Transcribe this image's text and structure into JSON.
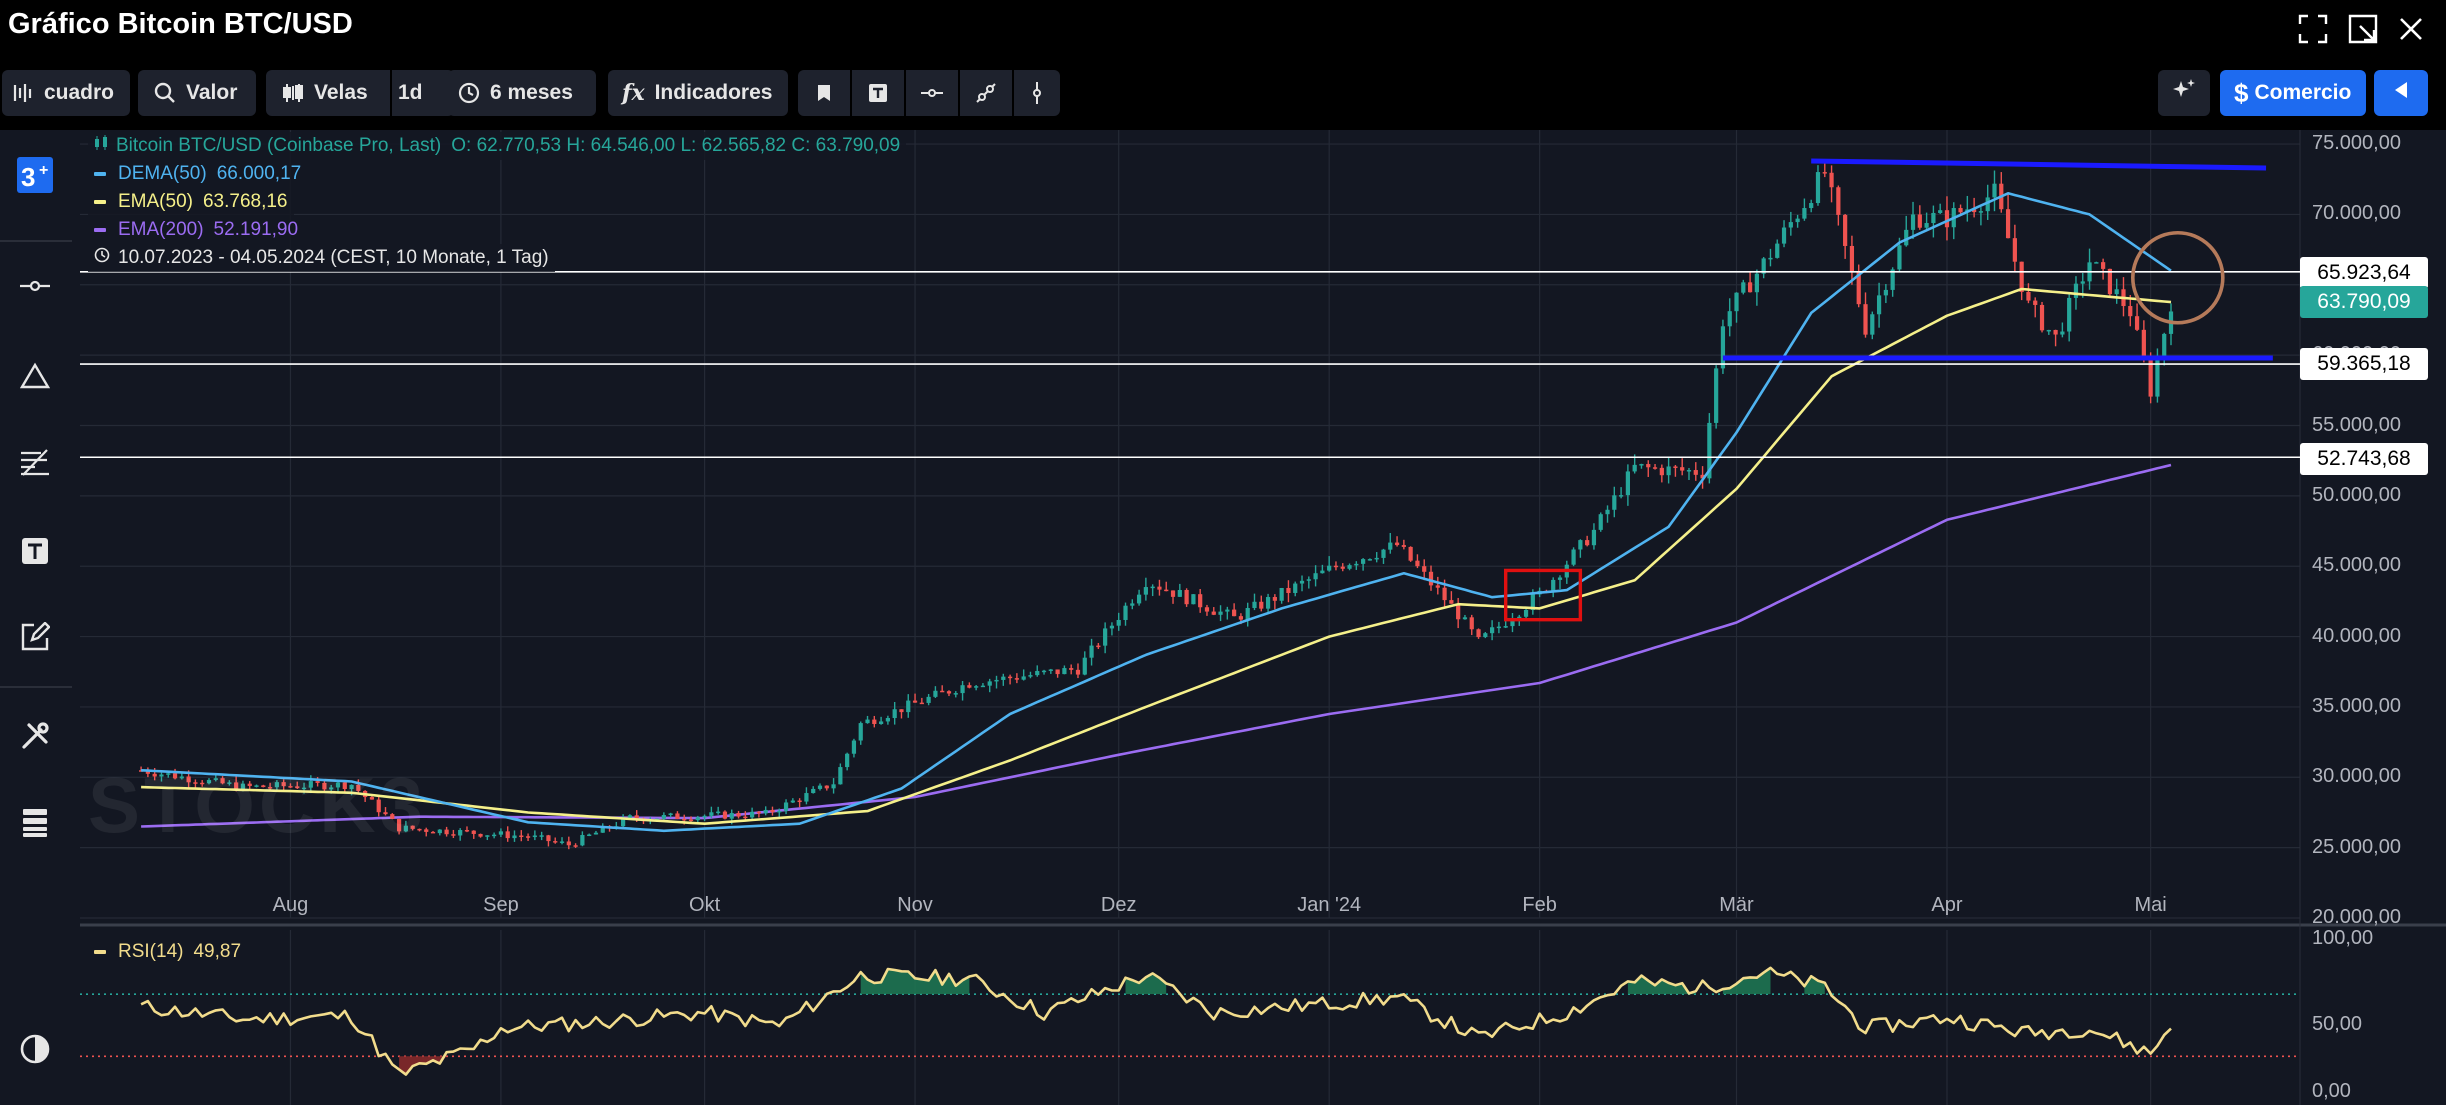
{
  "window": {
    "title": "Gráfico Bitcoin BTC/USD"
  },
  "toolbar": {
    "chart_type_label": "cuadro",
    "search_label": "Valor",
    "candles_label": "Velas",
    "interval_label": "1d",
    "range_label": "6 meses",
    "indicators_label": "Indicadores",
    "trade_label": "Comercio"
  },
  "legend": {
    "instrument": "Bitcoin BTC/USD (Coinbase Pro, Last)",
    "ohlc": "O: 62.770,53   H: 64.546,00   L: 62.565,82   C: 63.790,09",
    "dema_label": "DEMA(50)",
    "dema_value": "66.000,17",
    "ema50_label": "EMA(50)",
    "ema50_value": "63.768,16",
    "ema200_label": "EMA(200)",
    "ema200_value": "52.191,90",
    "period": "10.07.2023 - 04.05.2024   (CEST, 10 Monate, 1 Tag)",
    "rsi_label": "RSI(14)",
    "rsi_value": "49,87"
  },
  "watermark": "STOCK3",
  "price_labels": {
    "line1": "65.923,64",
    "current": "63.790,09",
    "line2": "59.365,18",
    "line3": "52.743,68"
  },
  "y_ticks": [
    "75.000,00",
    "70.000,00",
    "65.000,00",
    "60.000,00",
    "55.000,00",
    "50.000,00",
    "45.000,00",
    "40.000,00",
    "35.000,00",
    "30.000,00",
    "25.000,00",
    "20.000,00"
  ],
  "rsi_ticks": [
    "100,00",
    "50,00",
    "0,00"
  ],
  "x_ticks": [
    "Aug",
    "Sep",
    "Okt",
    "Nov",
    "Dez",
    "Jan '24",
    "Feb",
    "Mär",
    "Apr",
    "Mai"
  ],
  "colors": {
    "up": "#26a69a",
    "down": "#ef5350",
    "dema": "#4fb3f0",
    "ema50": "#f5f08a",
    "ema200": "#9b6cf2",
    "rsi": "#f2dc8c",
    "accent": "#1e6bf0",
    "drawing_blue": "#1a1aff",
    "drawing_red": "#e01010",
    "drawing_brown": "#b57a5a"
  },
  "chart_data": {
    "type": "candlestick",
    "instrument": "Bitcoin BTC/USD",
    "ylim": [
      20000,
      76000
    ],
    "rsi_ylim": [
      0,
      100
    ],
    "rsi_levels": [
      70,
      30
    ],
    "horizontal_lines": [
      65923.64,
      59365.18,
      52743.68
    ],
    "support_resistance": {
      "top": 73500,
      "bottom": 59800
    },
    "key_price": [
      {
        "date": "2023-07-10",
        "price": 30500
      },
      {
        "date": "2023-07-25",
        "price": 29300
      },
      {
        "date": "2023-08-10",
        "price": 29500
      },
      {
        "date": "2023-08-17",
        "price": 26400
      },
      {
        "date": "2023-09-05",
        "price": 25800
      },
      {
        "date": "2023-09-11",
        "price": 25200
      },
      {
        "date": "2023-09-20",
        "price": 27100
      },
      {
        "date": "2023-10-10",
        "price": 27400
      },
      {
        "date": "2023-10-20",
        "price": 29600
      },
      {
        "date": "2023-10-24",
        "price": 33800
      },
      {
        "date": "2023-11-09",
        "price": 36700
      },
      {
        "date": "2023-11-25",
        "price": 37700
      },
      {
        "date": "2023-12-05",
        "price": 44000
      },
      {
        "date": "2023-12-18",
        "price": 41300
      },
      {
        "date": "2024-01-02",
        "price": 45000
      },
      {
        "date": "2024-01-11",
        "price": 46500
      },
      {
        "date": "2024-01-20",
        "price": 41600
      },
      {
        "date": "2024-01-23",
        "price": 39600
      },
      {
        "date": "2024-02-01",
        "price": 43000
      },
      {
        "date": "2024-02-09",
        "price": 47500
      },
      {
        "date": "2024-02-15",
        "price": 52000
      },
      {
        "date": "2024-02-25",
        "price": 51700
      },
      {
        "date": "2024-02-28",
        "price": 62500
      },
      {
        "date": "2024-03-05",
        "price": 66500
      },
      {
        "date": "2024-03-14",
        "price": 73000
      },
      {
        "date": "2024-03-20",
        "price": 62000
      },
      {
        "date": "2024-03-27",
        "price": 69800
      },
      {
        "date": "2024-04-01",
        "price": 69700
      },
      {
        "date": "2024-04-08",
        "price": 71500
      },
      {
        "date": "2024-04-13",
        "price": 63500
      },
      {
        "date": "2024-04-17",
        "price": 61200
      },
      {
        "date": "2024-04-22",
        "price": 66700
      },
      {
        "date": "2024-04-28",
        "price": 63100
      },
      {
        "date": "2024-05-01",
        "price": 57500
      },
      {
        "date": "2024-05-04",
        "price": 63790
      }
    ],
    "dema50": [
      {
        "date": "2023-07-10",
        "price": 30500
      },
      {
        "date": "2023-08-10",
        "price": 29700
      },
      {
        "date": "2023-09-05",
        "price": 26800
      },
      {
        "date": "2023-09-25",
        "price": 26200
      },
      {
        "date": "2023-10-15",
        "price": 26700
      },
      {
        "date": "2023-10-30",
        "price": 29200
      },
      {
        "date": "2023-11-15",
        "price": 34500
      },
      {
        "date": "2023-12-05",
        "price": 38700
      },
      {
        "date": "2023-12-25",
        "price": 42000
      },
      {
        "date": "2024-01-12",
        "price": 44500
      },
      {
        "date": "2024-01-25",
        "price": 42800
      },
      {
        "date": "2024-02-05",
        "price": 43300
      },
      {
        "date": "2024-02-20",
        "price": 47800
      },
      {
        "date": "2024-03-01",
        "price": 54500
      },
      {
        "date": "2024-03-12",
        "price": 63000
      },
      {
        "date": "2024-03-25",
        "price": 68000
      },
      {
        "date": "2024-04-10",
        "price": 71500
      },
      {
        "date": "2024-04-22",
        "price": 70000
      },
      {
        "date": "2024-05-04",
        "price": 66000
      }
    ],
    "ema50": [
      {
        "date": "2023-07-10",
        "price": 29300
      },
      {
        "date": "2023-08-10",
        "price": 28900
      },
      {
        "date": "2023-09-05",
        "price": 27500
      },
      {
        "date": "2023-10-01",
        "price": 26700
      },
      {
        "date": "2023-10-25",
        "price": 27600
      },
      {
        "date": "2023-11-15",
        "price": 31200
      },
      {
        "date": "2023-12-05",
        "price": 35000
      },
      {
        "date": "2024-01-01",
        "price": 40000
      },
      {
        "date": "2024-01-20",
        "price": 42300
      },
      {
        "date": "2024-02-01",
        "price": 42000
      },
      {
        "date": "2024-02-15",
        "price": 44000
      },
      {
        "date": "2024-03-01",
        "price": 50500
      },
      {
        "date": "2024-03-15",
        "price": 58500
      },
      {
        "date": "2024-04-01",
        "price": 62800
      },
      {
        "date": "2024-04-12",
        "price": 64700
      },
      {
        "date": "2024-05-04",
        "price": 63768
      }
    ],
    "ema200": [
      {
        "date": "2023-07-10",
        "price": 26500
      },
      {
        "date": "2023-08-20",
        "price": 27200
      },
      {
        "date": "2023-10-01",
        "price": 27100
      },
      {
        "date": "2023-11-01",
        "price": 28600
      },
      {
        "date": "2023-12-01",
        "price": 31600
      },
      {
        "date": "2024-01-01",
        "price": 34500
      },
      {
        "date": "2024-02-01",
        "price": 36700
      },
      {
        "date": "2024-03-01",
        "price": 41000
      },
      {
        "date": "2024-04-01",
        "price": 48300
      },
      {
        "date": "2024-05-04",
        "price": 52192
      }
    ],
    "rsi14": [
      {
        "date": "2023-07-10",
        "price": 62
      },
      {
        "date": "2023-07-25",
        "price": 54
      },
      {
        "date": "2023-08-10",
        "price": 56
      },
      {
        "date": "2023-08-17",
        "price": 18
      },
      {
        "date": "2023-08-28",
        "price": 35
      },
      {
        "date": "2023-09-01",
        "price": 48
      },
      {
        "date": "2023-09-15",
        "price": 52
      },
      {
        "date": "2023-10-01",
        "price": 58
      },
      {
        "date": "2023-10-12",
        "price": 50
      },
      {
        "date": "2023-10-24",
        "price": 82
      },
      {
        "date": "2023-11-09",
        "price": 80
      },
      {
        "date": "2023-11-20",
        "price": 58
      },
      {
        "date": "2023-12-05",
        "price": 82
      },
      {
        "date": "2023-12-15",
        "price": 58
      },
      {
        "date": "2024-01-01",
        "price": 64
      },
      {
        "date": "2024-01-11",
        "price": 68
      },
      {
        "date": "2024-01-23",
        "price": 42
      },
      {
        "date": "2024-02-05",
        "price": 58
      },
      {
        "date": "2024-02-15",
        "price": 78
      },
      {
        "date": "2024-02-25",
        "price": 74
      },
      {
        "date": "2024-03-05",
        "price": 84
      },
      {
        "date": "2024-03-14",
        "price": 75
      },
      {
        "date": "2024-03-20",
        "price": 48
      },
      {
        "date": "2024-04-01",
        "price": 55
      },
      {
        "date": "2024-04-13",
        "price": 45
      },
      {
        "date": "2024-04-22",
        "price": 48
      },
      {
        "date": "2024-05-01",
        "price": 32
      },
      {
        "date": "2024-05-04",
        "price": 49.87
      }
    ],
    "rsi_overbought_zones": [
      [
        "2023-10-24",
        "2023-11-09"
      ],
      [
        "2023-12-02",
        "2023-12-08"
      ],
      [
        "2024-02-14",
        "2024-02-24"
      ],
      [
        "2024-02-28",
        "2024-03-06"
      ],
      [
        "2024-03-11",
        "2024-03-14"
      ]
    ],
    "rsi_oversold_zones": [
      [
        "2023-08-17",
        "2023-08-24"
      ]
    ],
    "highlight_box": {
      "start": "2024-01-27",
      "end": "2024-02-07",
      "low": 41200,
      "high": 44700
    },
    "circle": {
      "date": "2024-05-05",
      "price": 65500
    }
  }
}
